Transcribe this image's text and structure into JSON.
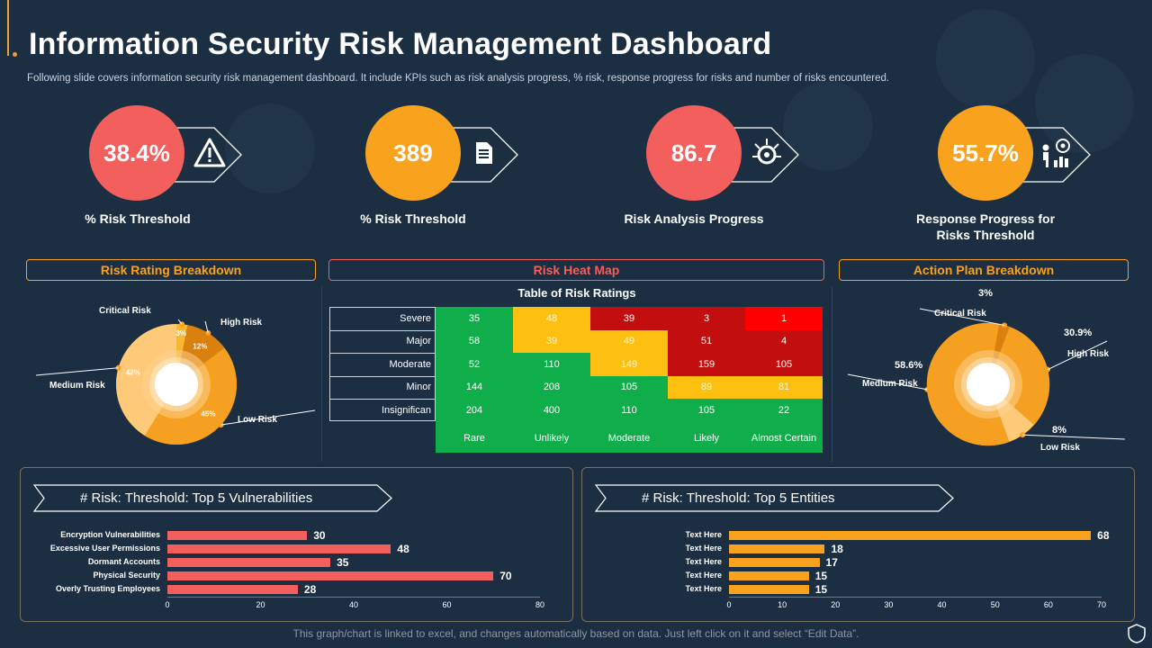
{
  "title": "Information Security Risk Management Dashboard",
  "subtitle": "Following slide covers information security risk management dashboard. It include KPIs such as risk analysis progress, % risk, response progress for risks and number of risks encountered.",
  "kpis": [
    {
      "value": "38.4%",
      "label": "% Risk Threshold",
      "color": "#f25f5c",
      "icon": "warning-icon"
    },
    {
      "value": "389",
      "label": "% Risk Threshold",
      "color": "#f9a21e",
      "icon": "document-icon"
    },
    {
      "value": "86.7",
      "label": "Risk Analysis  Progress",
      "color": "#f25f5c",
      "icon": "virus-target-icon"
    },
    {
      "value": "55.7%",
      "label": "Response Progress for Risks Threshold",
      "color": "#f9a21e",
      "icon": "target-person-icon"
    }
  ],
  "sections": {
    "risk_rating": "Risk Rating Breakdown",
    "heat_map": "Risk Heat Map",
    "action_plan": "Action Plan Breakdown"
  },
  "colors": {
    "accent_orange": "#f9a21e",
    "accent_red": "#f25f5c",
    "background": "#1c2e42"
  },
  "footer": "This graph/chart is linked to excel, and changes automatically based on data. Just left click on it and select “Edit Data”.",
  "chart_data": [
    {
      "type": "pie",
      "name": "risk-rating-breakdown",
      "labels": [
        "Critical Risk",
        "High Risk",
        "Low Risk",
        "Medium Risk"
      ],
      "values": [
        3,
        12,
        45,
        42
      ],
      "value_labels": [
        "3%",
        "12%",
        "45%",
        "42%"
      ],
      "colors": [
        "#f7b733",
        "#d9800f",
        "#f5a020",
        "#ffc97a"
      ]
    },
    {
      "type": "heatmap",
      "title": "Table of Risk Ratings",
      "rows": [
        "Severe",
        "Major",
        "Moderate",
        "Minor",
        "Insignifican"
      ],
      "columns": [
        "Rare",
        "Unlikely",
        "Moderate",
        "Likely",
        "Almost Certain"
      ],
      "values": [
        [
          35,
          48,
          39,
          3,
          1
        ],
        [
          58,
          39,
          49,
          51,
          4
        ],
        [
          52,
          110,
          149,
          159,
          105
        ],
        [
          144,
          208,
          105,
          89,
          81
        ],
        [
          204,
          400,
          110,
          105,
          22
        ]
      ],
      "cell_colors": [
        [
          "#0fae4a",
          "#fdc010",
          "#c20e0e",
          "#c20e0e",
          "#ff0000"
        ],
        [
          "#0fae4a",
          "#fdc010",
          "#fdc010",
          "#c20e0e",
          "#c20e0e"
        ],
        [
          "#0fae4a",
          "#0fae4a",
          "#fdc010",
          "#c20e0e",
          "#c20e0e"
        ],
        [
          "#0fae4a",
          "#0fae4a",
          "#0fae4a",
          "#fdc010",
          "#fdc010"
        ],
        [
          "#0fae4a",
          "#0fae4a",
          "#0fae4a",
          "#0fae4a",
          "#0fae4a"
        ]
      ]
    },
    {
      "type": "pie",
      "name": "action-plan-breakdown",
      "labels": [
        "Critical Risk",
        "High Risk",
        "Low Risk",
        "Medium Risk"
      ],
      "values": [
        3,
        30.9,
        8,
        58.6
      ],
      "value_labels": [
        "3%",
        "30.9%",
        "8%",
        "58.6%"
      ],
      "colors": [
        "#d9800f",
        "#f5a020",
        "#ffc97a",
        "#f5a020"
      ]
    },
    {
      "type": "bar",
      "orientation": "horizontal",
      "title": "# Risk: Threshold:  Top 5 Vulnerabilities",
      "categories": [
        "Encryption Vulnerabilities",
        "Excessive User Permissions",
        "Dormant Accounts",
        "Physical Security",
        "Overly Trusting Employees"
      ],
      "values": [
        30,
        48,
        35,
        70,
        28
      ],
      "xlim": [
        0,
        80
      ],
      "ticks": [
        "0",
        "20",
        "40",
        "60",
        "80"
      ],
      "color": "#f25f5c"
    },
    {
      "type": "bar",
      "orientation": "horizontal",
      "title": "# Risk: Threshold:  Top 5 Entities",
      "categories": [
        "Text Here",
        "Text Here",
        "Text Here",
        "Text Here",
        "Text Here"
      ],
      "values": [
        68,
        18,
        17,
        15,
        15
      ],
      "xlim": [
        0,
        70
      ],
      "ticks": [
        "0",
        "10",
        "20",
        "30",
        "40",
        "50",
        "60",
        "70"
      ],
      "color": "#f9a21e"
    }
  ]
}
